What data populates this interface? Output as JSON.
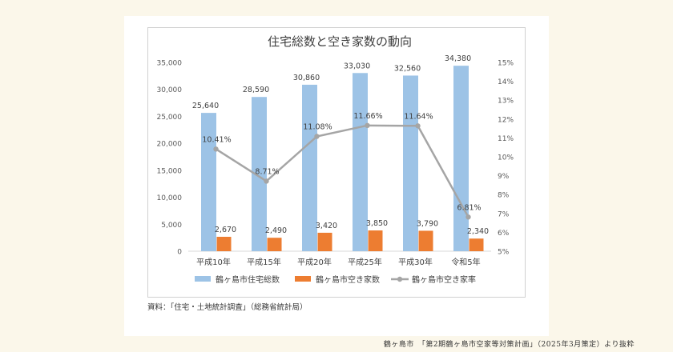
{
  "chart_data": {
    "type": "bar",
    "title": "住宅総数と空き家数の動向",
    "categories": [
      "平成10年",
      "平成15年",
      "平成20年",
      "平成25年",
      "平成30年",
      "令和5年"
    ],
    "series": [
      {
        "name": "鶴ヶ島市住宅総数",
        "kind": "bar",
        "axis": "left",
        "color": "#9dc3e6",
        "values": [
          25640,
          28590,
          30860,
          33030,
          32560,
          34380
        ],
        "labels": [
          "25,640",
          "28,590",
          "30,860",
          "33,030",
          "32,560",
          "34,380"
        ]
      },
      {
        "name": "鶴ヶ島市空き家数",
        "kind": "bar",
        "axis": "left",
        "color": "#ed7d31",
        "values": [
          2670,
          2490,
          3420,
          3850,
          3790,
          2340
        ],
        "labels": [
          "2,670",
          "2,490",
          "3,420",
          "3,850",
          "3,790",
          "2,340"
        ]
      },
      {
        "name": "鶴ヶ島市空き家率",
        "kind": "line",
        "axis": "right",
        "color": "#a5a5a5",
        "values": [
          10.41,
          8.71,
          11.08,
          11.66,
          11.64,
          6.81
        ],
        "labels": [
          "10.41%",
          "8.71%",
          "11.08%",
          "11.66%",
          "11.64%",
          "6.81%"
        ]
      }
    ],
    "y_left": {
      "min": 0,
      "max": 35000,
      "ticks": [
        "0",
        "5,000",
        "10,000",
        "15,000",
        "20,000",
        "25,000",
        "30,000",
        "35,000"
      ]
    },
    "y_right": {
      "min": 5,
      "max": 15,
      "ticks": [
        "5%",
        "6%",
        "7%",
        "8%",
        "9%",
        "10%",
        "11%",
        "12%",
        "13%",
        "14%",
        "15%"
      ]
    },
    "grid": false,
    "legend_position": "bottom"
  },
  "source_note": "資料：「住宅・土地統計調査」（総務省統計局）",
  "credit": "鶴ヶ島市　「第2期鶴ヶ島市空家等対策計画」（2025年3月策定）より抜粋"
}
